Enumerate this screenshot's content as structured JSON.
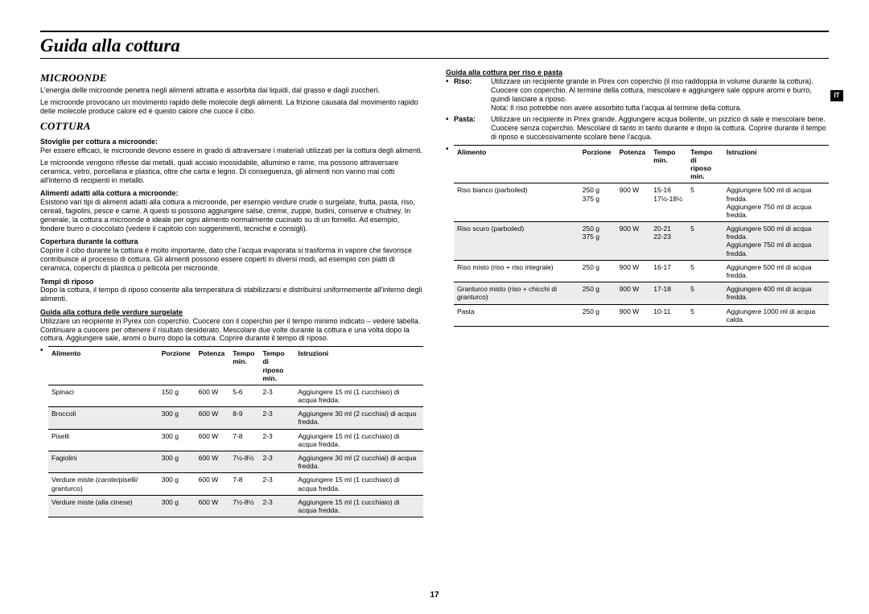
{
  "page_title": "Guida alla cottura",
  "lang_tab": "IT",
  "page_number": "17",
  "left": {
    "microonde_hd": "Microonde",
    "microonde_p1": "L'energia delle microonde penetra negli alimenti attratta e assorbita dai liquidi, dal grasso e dagli zuccheri.",
    "microonde_p2": "Le microonde provocano un movimento rapido delle molecole degli alimenti. La frizione causata dal movimento rapido delle molecole produce calore ed è questo calore che cuoce il cibo.",
    "cottura_hd": "Cottura",
    "stoviglie_hd": "Stoviglie per cottura a microonde:",
    "stoviglie_p1": "Per essere efficaci, le microonde devono essere in grado di attraversare i materiali utilizzati per la cottura degli alimenti.",
    "stoviglie_p2": "Le microonde vengono riflesse dai metalli, quali acciaio inossidabile, alluminio e rame, ma possono attraversare ceramica, vetro, porcellana e plastica, oltre che carta e legno. Di conseguenza, gli alimenti non vanno mai cotti all'interno di recipienti in metallo.",
    "alimenti_hd": "Alimenti adatti alla cottura a microonde:",
    "alimenti_p": "Esistono vari tipi di alimenti adatti alla cottura a microonde, per esempio verdure crude o surgelate, frutta, pasta, riso, cereali, fagiolini, pesce e carne. A questi si possono aggiungere salse, creme, zuppe, budini, conserve e chutney. In generale, la cottura a microonde è ideale per ogni alimento normalmente cucinato su di un fornello. Ad esempio, fondere burro o cioccolato (vedere il capitolo con suggerimenti, tecniche e consigli).",
    "copertura_hd": "Copertura durante la cottura",
    "copertura_p": "Coprire il cibo durante la cottura è molto importante, dato che l'acqua evaporata si trasforma in vapore che favorisce contribuisce al processo di cottura. Gli alimenti possono essere coperti in diversi modi, ad esempio con piatti di ceramica, coperchi di plastica o pellicola per microonde.",
    "tempi_hd": "Tempi di riposo",
    "tempi_p": "Dopo la cottura, il tempo di riposo consente alla temperatura di stabilizzarsi e distribuirsi uniformemente all'interno degli alimenti.",
    "verdure_hd": "Guida alla cottura delle verdure surgelate",
    "verdure_p": "Utilizzare un recipiente in Pyrex con coperchio. Cuocere con il coperchio per il tempo minimo indicato – vedere tabella. Continuare a cuocere per ottenere il risultato desiderato. Mescolare due volte durante la cottura e una volta dopo la cottura. Aggiungere sale, aromi o burro dopo la cottura. Coprire durante il tempo di riposo."
  },
  "veg_table": {
    "headers": [
      "Alimento",
      "Porzione",
      "Potenza",
      "Tempo min.",
      "Tempo di riposo min.",
      "Istruzioni"
    ],
    "rows": [
      [
        "Spinaci",
        "150 g",
        "600 W",
        "5-6",
        "2-3",
        "Aggiungere 15 ml (1 cucchiaio) di acqua fredda."
      ],
      [
        "Broccoli",
        "300 g",
        "600 W",
        "8-9",
        "2-3",
        "Aggiungere 30 ml (2 cucchiai) di acqua fredda."
      ],
      [
        "Piselli",
        "300 g",
        "600 W",
        "7-8",
        "2-3",
        "Aggiungere 15 ml (1 cucchiaio) di acqua fredda."
      ],
      [
        "Fagiolini",
        "300 g",
        "600 W",
        "7½-8½",
        "2-3",
        "Aggiungere 30 ml (2 cucchiai) di acqua fredda."
      ],
      [
        "Verdure miste (carote/piselli/ granturco)",
        "300 g",
        "600 W",
        "7-8",
        "2-3",
        "Aggiungere 15 ml (1 cucchiaio) di acqua fredda."
      ],
      [
        "Verdure miste (alla cinese)",
        "300 g",
        "600 W",
        "7½-8½",
        "2-3",
        "Aggiungere 15 ml (1 cucchiaio) di acqua fredda."
      ]
    ]
  },
  "right": {
    "riso_pasta_hd": "Guida alla cottura per riso e pasta",
    "riso_label": "Riso:",
    "riso_body": "Utilizzare un recipiente grande in Pirex con coperchio (il riso raddoppia in volume durante la cottura). Cuocere con coperchio. Al termine della cottura, mescolare e aggiungere sale oppure aromi e burro, quindi lasciare a riposo.\nNota: Il riso potrebbe non avere assorbito tutta l'acqua al termine della cottura.",
    "pasta_label": "Pasta:",
    "pasta_body": "Utilizzare un recipiente in Pirex grande. Aggiungere acqua bollente, un pizzico di sale e mescolare bene. Cuocere senza coperchio. Mescolare di tanto in tanto durante e dopo la cottura. Coprire durante il tempo di riposo e successivamente scolare bene l'acqua."
  },
  "rice_table": {
    "headers": [
      "Alimento",
      "Porzione",
      "Potenza",
      "Tempo min.",
      "Tempo di riposo min.",
      "Istruzioni"
    ],
    "rows": [
      [
        "Riso bianco (parboiled)",
        "250 g\n375 g",
        "900 W",
        "15-16\n17½-18½",
        "5",
        "Aggiungere 500 ml di acqua fredda.\nAggiungere 750 ml di acqua fredda."
      ],
      [
        "Riso scuro (parboiled)",
        "250 g\n375 g",
        "900 W",
        "20-21\n22-23",
        "5",
        "Aggiungere 500 ml di acqua fredda.\nAggiungere 750 ml di acqua fredda."
      ],
      [
        "Riso misto (riso + riso integrale)",
        "250 g",
        "900 W",
        "16-17",
        "5",
        "Aggiungere 500 ml di acqua fredda."
      ],
      [
        "Granturco misto (riso + chicchi di granturco)",
        "250 g",
        "900 W",
        "17-18",
        "5",
        "Aggiungere 400 ml di acqua fredda."
      ],
      [
        "Pasta",
        "250 g",
        "900 W",
        "10-11",
        "5",
        "Aggiungere 1000 ml di acqua calda."
      ]
    ]
  }
}
